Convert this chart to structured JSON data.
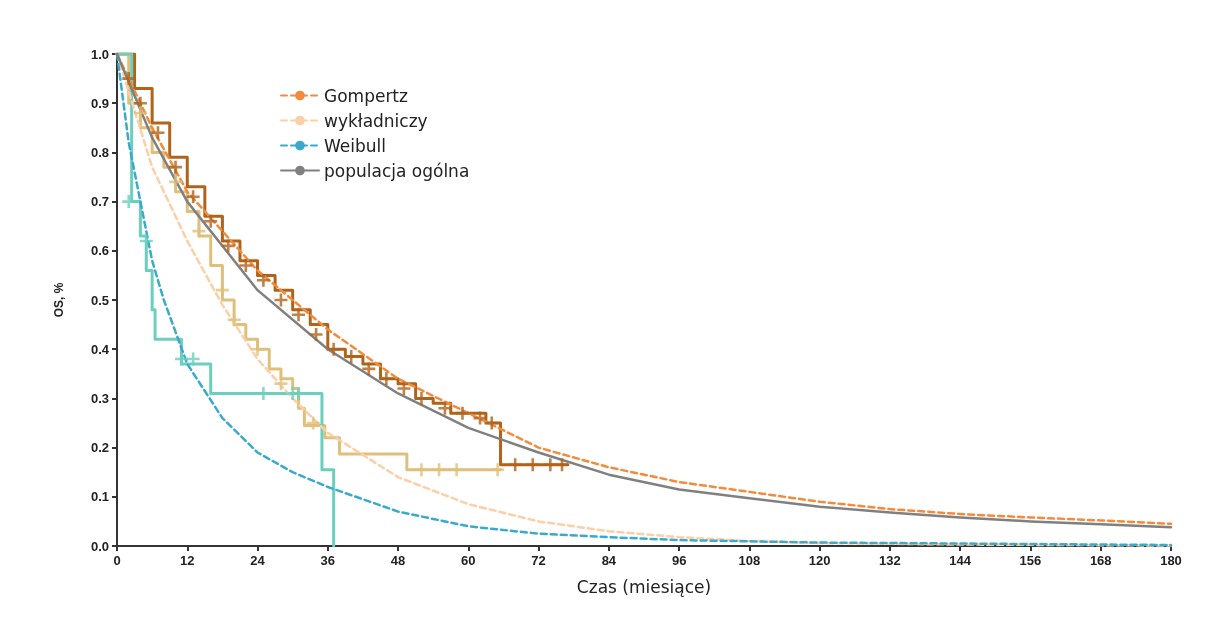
{
  "chart_data": {
    "type": "line",
    "xlabel": "Czas (miesiące)",
    "ylabel": "OS, %",
    "xlim": [
      0,
      180
    ],
    "xticks": [
      0,
      12,
      24,
      36,
      48,
      60,
      72,
      84,
      96,
      108,
      120,
      132,
      144,
      156,
      168,
      180
    ],
    "ylim": [
      0,
      1
    ],
    "yticks": [
      {
        "value": 0,
        "label": "0.0"
      },
      {
        "value": 0.1,
        "label": "0.1"
      },
      {
        "value": 0.2,
        "label": "0.2"
      },
      {
        "value": 0.3,
        "label": "0.3"
      },
      {
        "value": 0.4,
        "label": "0.4"
      },
      {
        "value": 0.5,
        "label": "0.5"
      },
      {
        "value": 0.6,
        "label": "0.6"
      },
      {
        "value": 0.7,
        "label": "0.7"
      },
      {
        "value": 0.8,
        "label": "0.8"
      },
      {
        "value": 0.9,
        "label": "0.9"
      },
      {
        "value": 1,
        "label": "1.0"
      }
    ],
    "grid": false,
    "legend": "top left",
    "marker": "none",
    "series": [
      {
        "type": "step",
        "color": "#b0631a",
        "x": [
          0,
          3,
          6,
          9,
          12,
          15,
          18,
          21,
          24,
          27,
          30,
          33,
          36,
          39,
          42,
          45,
          48,
          51,
          54,
          57,
          60,
          63,
          65.5,
          77
        ],
        "values": [
          1,
          0.93,
          0.86,
          0.79,
          0.73,
          0.67,
          0.62,
          0.58,
          0.55,
          0.52,
          0.48,
          0.45,
          0.4,
          0.385,
          0.37,
          0.34,
          0.33,
          0.3,
          0.29,
          0.27,
          0.27,
          0.25,
          0.165,
          0.165
        ]
      },
      {
        "type": "step",
        "color": "#e0bf7a",
        "x": [
          0,
          2,
          4,
          6,
          8,
          10,
          12,
          14,
          16,
          18,
          20,
          22,
          24,
          26,
          28,
          30,
          31,
          32,
          35.5,
          38,
          49.5,
          65.5
        ],
        "values": [
          1,
          0.9,
          0.85,
          0.8,
          0.77,
          0.72,
          0.68,
          0.63,
          0.57,
          0.5,
          0.45,
          0.42,
          0.4,
          0.36,
          0.34,
          0.32,
          0.28,
          0.245,
          0.22,
          0.187,
          0.155,
          0.155
        ]
      },
      {
        "type": "step",
        "color": "#6ccfbd",
        "x": [
          0,
          2.5,
          4,
          5,
          6,
          6.5,
          11,
          16,
          35,
          37
        ],
        "values": [
          1,
          0.7,
          0.63,
          0.56,
          0.48,
          0.42,
          0.37,
          0.31,
          0.155,
          0
        ]
      },
      {
        "type": "scatter",
        "marker": "cross",
        "color": "#b0631a",
        "x": [
          2,
          4,
          7,
          10,
          13,
          16,
          19,
          22,
          25,
          28,
          31,
          34,
          37,
          40,
          43,
          46,
          49,
          52,
          56,
          59,
          62,
          64,
          68,
          71,
          74,
          76
        ],
        "values": [
          0.95,
          0.9,
          0.84,
          0.77,
          0.71,
          0.66,
          0.61,
          0.57,
          0.54,
          0.5,
          0.47,
          0.43,
          0.4,
          0.385,
          0.36,
          0.34,
          0.32,
          0.3,
          0.28,
          0.27,
          0.26,
          0.25,
          0.165,
          0.165,
          0.165,
          0.165
        ]
      },
      {
        "type": "scatter",
        "marker": "cross",
        "color": "#e0bf7a",
        "x": [
          4,
          10,
          14,
          18,
          20,
          24,
          28,
          33.5,
          52,
          55,
          58,
          65
        ],
        "values": [
          0.88,
          0.74,
          0.64,
          0.52,
          0.46,
          0.4,
          0.33,
          0.25,
          0.155,
          0.155,
          0.155,
          0.155
        ]
      },
      {
        "type": "scatter",
        "marker": "cross",
        "color": "#6ccfbd",
        "x": [
          2,
          5,
          11,
          13,
          25,
          30,
          31
        ],
        "values": [
          0.7,
          0.62,
          0.38,
          0.38,
          0.31,
          0.31,
          0.31
        ]
      },
      {
        "name": "Gompertz",
        "type": "line",
        "line_style": "dashed",
        "color": "#f28c3c",
        "x": [
          0,
          6,
          12,
          24,
          36,
          48,
          60,
          72,
          84,
          96,
          108,
          120,
          132,
          144,
          156,
          168,
          180
        ],
        "values": [
          1,
          0.85,
          0.72,
          0.56,
          0.44,
          0.34,
          0.27,
          0.2,
          0.16,
          0.13,
          0.11,
          0.09,
          0.075,
          0.065,
          0.058,
          0.052,
          0.045
        ]
      },
      {
        "name": "wykładniczy",
        "type": "line",
        "line_style": "dashed",
        "color": "#fbcfa8",
        "x": [
          0,
          6,
          12,
          18,
          24,
          30,
          36,
          48,
          60,
          72,
          84,
          96,
          108,
          120,
          144,
          180
        ],
        "values": [
          1,
          0.77,
          0.62,
          0.49,
          0.38,
          0.3,
          0.23,
          0.14,
          0.085,
          0.05,
          0.03,
          0.018,
          0.01,
          0.006,
          0.003,
          0.001
        ]
      },
      {
        "name": "Weibull",
        "type": "line",
        "line_style": "dashed",
        "color": "#3aaacb",
        "x": [
          0,
          2,
          4,
          6,
          8,
          12,
          18,
          24,
          30,
          36,
          48,
          60,
          72,
          84,
          96,
          120,
          180
        ],
        "values": [
          1,
          0.82,
          0.7,
          0.58,
          0.5,
          0.37,
          0.26,
          0.19,
          0.15,
          0.12,
          0.07,
          0.04,
          0.025,
          0.018,
          0.012,
          0.007,
          0.002
        ]
      },
      {
        "name": "populacja ogólna",
        "type": "line",
        "line_style": "solid",
        "color": "#808080",
        "x": [
          0,
          6,
          12,
          24,
          36,
          48,
          60,
          72,
          84,
          96,
          108,
          120,
          132,
          144,
          156,
          168,
          180
        ],
        "values": [
          1,
          0.83,
          0.7,
          0.52,
          0.4,
          0.31,
          0.24,
          0.19,
          0.145,
          0.115,
          0.097,
          0.08,
          0.068,
          0.058,
          0.05,
          0.044,
          0.038
        ]
      }
    ]
  }
}
